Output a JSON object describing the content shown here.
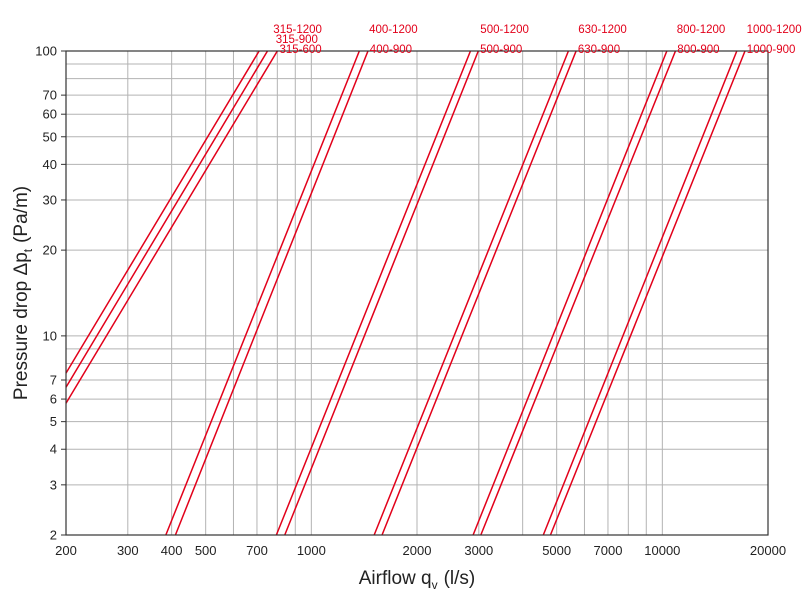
{
  "chart_data": {
    "type": "line",
    "title": "",
    "xlabel": "Airflow q",
    "xlabel_sub": "v",
    "xlabel_unit": "(l/s)",
    "ylabel": "Pressure drop Δp",
    "ylabel_sub": "t",
    "ylabel_unit": "(Pa/m)",
    "x_scale": "log",
    "y_scale": "log",
    "xlim": [
      200,
      20000
    ],
    "ylim": [
      2,
      100
    ],
    "grid": true,
    "line_color": "#e2001a",
    "x_ticks": [
      200,
      300,
      400,
      500,
      700,
      1000,
      2000,
      3000,
      5000,
      7000,
      10000,
      20000
    ],
    "y_ticks": [
      2,
      3,
      4,
      5,
      6,
      7,
      10,
      20,
      30,
      40,
      50,
      60,
      70,
      100
    ],
    "series": [
      {
        "name": "315-1200",
        "points": [
          [
            200,
            7.4
          ],
          [
            710,
            100
          ]
        ],
        "label_pos": "top"
      },
      {
        "name": "315-900",
        "points": [
          [
            200,
            6.6
          ],
          [
            750,
            100
          ]
        ],
        "label_pos": "middle"
      },
      {
        "name": "315-600",
        "points": [
          [
            200,
            5.8
          ],
          [
            800,
            100
          ]
        ],
        "label_pos": "bottom"
      },
      {
        "name": "400-1200",
        "points": [
          [
            385,
            2
          ],
          [
            1370,
            100
          ]
        ],
        "label_pos": "top"
      },
      {
        "name": "400-900",
        "points": [
          [
            410,
            2
          ],
          [
            1450,
            100
          ]
        ],
        "label_pos": "bottom"
      },
      {
        "name": "500-1200",
        "points": [
          [
            795,
            2
          ],
          [
            2840,
            100
          ]
        ],
        "label_pos": "top"
      },
      {
        "name": "500-900",
        "points": [
          [
            840,
            2
          ],
          [
            2990,
            100
          ]
        ],
        "label_pos": "bottom"
      },
      {
        "name": "630-1200",
        "points": [
          [
            1510,
            2
          ],
          [
            5400,
            100
          ]
        ],
        "label_pos": "top"
      },
      {
        "name": "630-900",
        "points": [
          [
            1590,
            2
          ],
          [
            5680,
            100
          ]
        ],
        "label_pos": "bottom"
      },
      {
        "name": "800-1200",
        "points": [
          [
            2890,
            2
          ],
          [
            10300,
            100
          ]
        ],
        "label_pos": "top"
      },
      {
        "name": "800-900",
        "points": [
          [
            3040,
            2
          ],
          [
            10900,
            100
          ]
        ],
        "label_pos": "bottom"
      },
      {
        "name": "1000-1200",
        "points": [
          [
            4580,
            2
          ],
          [
            16300,
            100
          ]
        ],
        "label_pos": "top"
      },
      {
        "name": "1000-900",
        "points": [
          [
            4800,
            2
          ],
          [
            17200,
            100
          ]
        ],
        "label_pos": "bottom"
      }
    ]
  }
}
